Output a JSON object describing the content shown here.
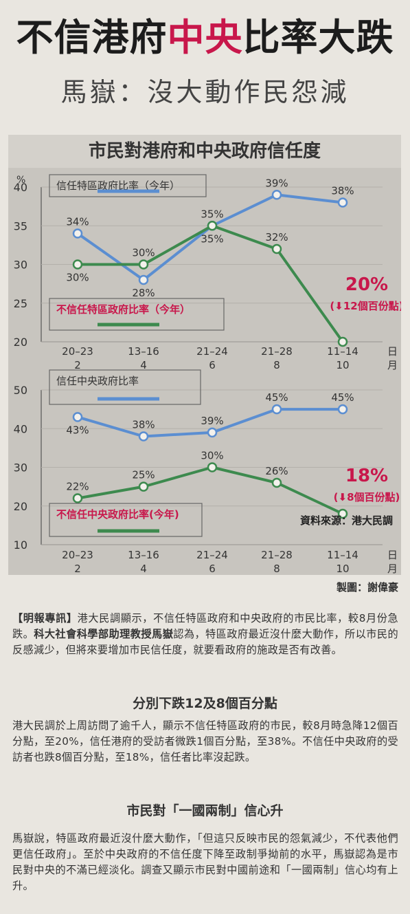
{
  "headline": {
    "part1": "不信港府",
    "part2": "中央",
    "part3": "比率大跌"
  },
  "subheadline": "馬嶽：沒大動作民怨減",
  "chart_heading": "市民對港府和中央政府信任度",
  "credit": "製圖：謝偉豪",
  "colors": {
    "trust_line": "#5b8ed1",
    "distrust_line": "#3d8a4e",
    "highlight_red": "#c8174b",
    "panel_bg": "#c8c5bf"
  },
  "chart_data": [
    {
      "type": "line",
      "title": "",
      "unit_label": "%",
      "categories": [
        "20–23 2",
        "13–16 4",
        "21–24 6",
        "21–28 8",
        "11–14 10"
      ],
      "x_date_lines": [
        [
          "20–23",
          "2"
        ],
        [
          "13–16",
          "4"
        ],
        [
          "21–24",
          "6"
        ],
        [
          "21–28",
          "8"
        ],
        [
          "11–14",
          "10"
        ]
      ],
      "x_unit": [
        "日",
        "月"
      ],
      "ylim": [
        20,
        40
      ],
      "yticks": [
        20,
        25,
        30,
        35,
        40
      ],
      "series": [
        {
          "name": "信任特區政府比率（今年）",
          "values": [
            34,
            28,
            35,
            39,
            38
          ],
          "labels": [
            "34%",
            "28%",
            "35%",
            "39%",
            "38%"
          ]
        },
        {
          "name": "不信任特區政府比率（今年）",
          "values": [
            30,
            30,
            35,
            32,
            20
          ],
          "labels": [
            "30%",
            "30%",
            "35%",
            "32%",
            ""
          ]
        }
      ],
      "annotation": {
        "value": "20%",
        "change": "12個百份點"
      }
    },
    {
      "type": "line",
      "title": "",
      "categories": [
        "20–23 2",
        "13–16 4",
        "21–24 6",
        "21–28 8",
        "11–14 10"
      ],
      "x_date_lines": [
        [
          "20–23",
          "2"
        ],
        [
          "13–16",
          "4"
        ],
        [
          "21–24",
          "6"
        ],
        [
          "21–28",
          "8"
        ],
        [
          "11–14",
          "10"
        ]
      ],
      "x_unit": [
        "日",
        "月"
      ],
      "ylim": [
        10,
        50
      ],
      "yticks": [
        10,
        20,
        30,
        40,
        50
      ],
      "series": [
        {
          "name": "信任中央政府比率",
          "values": [
            43,
            38,
            39,
            45,
            45
          ],
          "labels": [
            "43%",
            "38%",
            "39%",
            "45%",
            "45%"
          ]
        },
        {
          "name": "不信任中央政府比率(今年)",
          "values": [
            22,
            25,
            30,
            26,
            18
          ],
          "labels": [
            "22%",
            "25%",
            "30%",
            "26%",
            ""
          ]
        }
      ],
      "annotation": {
        "value": "18%",
        "change": "8個百份點"
      },
      "source": "資料來源：港大民調"
    }
  ],
  "article": {
    "p1_tag": "【明報專訊】",
    "p1_a": "港大民調顯示，不信任特區政府和中央政府的市民比率，較8月份急跌。",
    "p1_bold": "科大社會科學部助理教授馬嶽",
    "p1_b": "認為，特區政府最近沒什麼大動作，所以市民的反感減少，但將來要增加市民信任度，就要看政府的施政是否有改善。",
    "subhead1": "分別下跌12及8個百分點",
    "p2": "港大民調於上周訪問了逾千人，顯示不信任特區政府的市民，較8月時急降12個百分點，至20%，信任港府的受訪者微跌1個百分點，至38%。不信任中央政府的受訪者也跌8個百分點，至18%，信任者比率沒起跌。",
    "subhead2": "市民對「一國兩制」信心升",
    "p3": "馬嶽說，特區政府最近沒什麼大動作，「但這只反映市民的怨氣減少，不代表他們更信任政府」。至於中央政府的不信任度下降至政制爭拗前的水平，馬嶽認為是市民對中央的不滿已經淡化。調查又顯示市民對中國前途和「一國兩制」信心均有上升。"
  }
}
